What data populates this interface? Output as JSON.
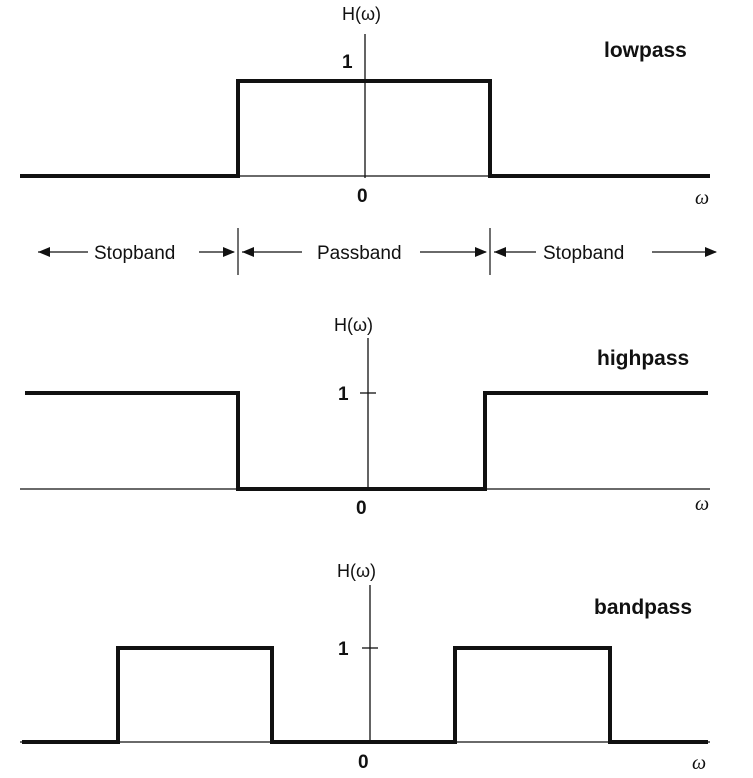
{
  "filters": [
    {
      "title": "lowpass",
      "y_label": "H(ω)",
      "one_label": "1",
      "zero_label": "0",
      "x_label": "ω",
      "gain_profile": [
        0,
        1,
        0
      ]
    },
    {
      "title": "highpass",
      "y_label": "H(ω)",
      "one_label": "1",
      "zero_label": "0",
      "x_label": "ω",
      "gain_profile": [
        1,
        0,
        1
      ]
    },
    {
      "title": "bandpass",
      "y_label": "H(ω)",
      "one_label": "1",
      "zero_label": "0",
      "x_label": "ω",
      "gain_profile": [
        0,
        1,
        0,
        0,
        0,
        1,
        0
      ]
    }
  ],
  "bands": {
    "left": "Stopband",
    "middle": "Passband",
    "right": "Stopband"
  }
}
